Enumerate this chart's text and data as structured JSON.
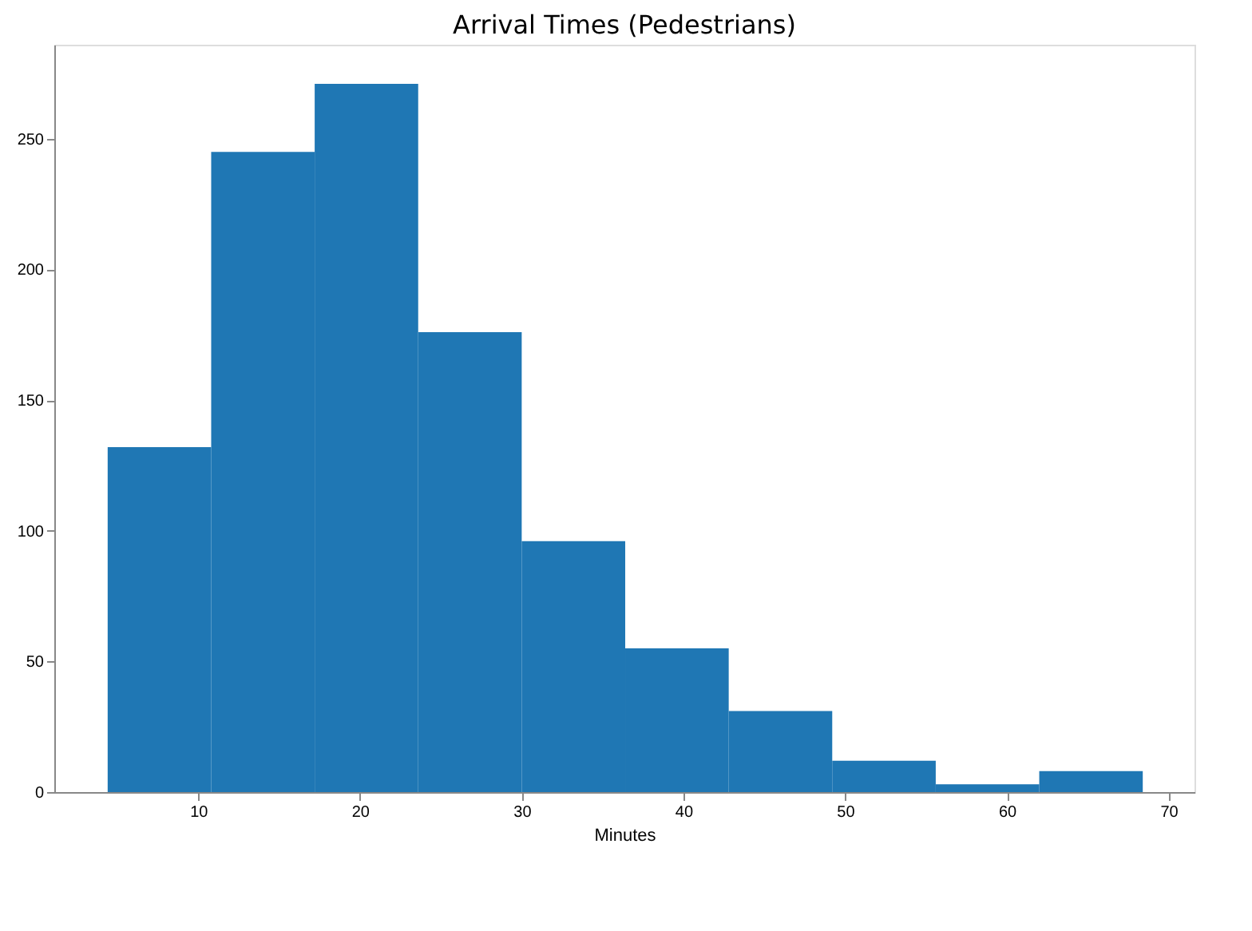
{
  "chart_data": {
    "type": "histogram",
    "title": "Arrival Times (Pedestrians)",
    "xlabel": "Minutes",
    "bins": [
      4.4,
      10.8,
      17.2,
      23.6,
      30.0,
      36.4,
      42.8,
      49.2,
      55.6,
      62.0,
      68.4
    ],
    "values": [
      132,
      245,
      271,
      176,
      96,
      55,
      31,
      12,
      3,
      8
    ],
    "color": "#1f77b4",
    "xlim": [
      1.1,
      71.6
    ],
    "xticks": [
      10,
      20,
      30,
      40,
      50,
      60,
      70
    ],
    "ylim": [
      0,
      286
    ],
    "yticks": [
      0,
      50,
      100,
      150,
      200,
      250
    ],
    "grid": false
  }
}
